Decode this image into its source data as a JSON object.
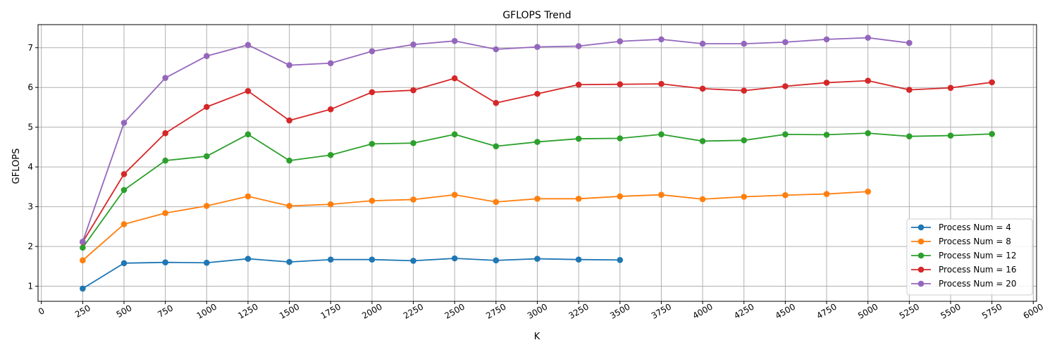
{
  "chart_data": {
    "type": "line",
    "title": "GFLOPS Trend",
    "xlabel": "K",
    "ylabel": "GFLOPS",
    "xlim": [
      -20,
      6020
    ],
    "ylim": [
      0.62,
      7.58
    ],
    "xticks": [
      0,
      250,
      500,
      750,
      1000,
      1250,
      1500,
      1750,
      2000,
      2250,
      2500,
      2750,
      3000,
      3250,
      3500,
      3750,
      4000,
      4250,
      4500,
      4750,
      5000,
      5250,
      5500,
      5750,
      6000
    ],
    "yticks": [
      1,
      2,
      3,
      4,
      5,
      6,
      7
    ],
    "grid": true,
    "legend_position": "lower-right",
    "series": [
      {
        "name": "Process Num = 4",
        "color": "#1f77b4",
        "x": [
          250,
          500,
          750,
          1000,
          1250,
          1500,
          1750,
          2000,
          2250,
          2500,
          2750,
          3000,
          3250,
          3500
        ],
        "y": [
          0.94,
          1.58,
          1.6,
          1.59,
          1.69,
          1.61,
          1.67,
          1.67,
          1.64,
          1.7,
          1.65,
          1.69,
          1.67,
          1.66
        ]
      },
      {
        "name": "Process Num = 8",
        "color": "#ff7f0e",
        "x": [
          250,
          500,
          750,
          1000,
          1250,
          1500,
          1750,
          2000,
          2250,
          2500,
          2750,
          3000,
          3250,
          3500,
          3750,
          4000,
          4250,
          4500,
          4750,
          5000
        ],
        "y": [
          1.65,
          2.56,
          2.84,
          3.02,
          3.26,
          3.02,
          3.06,
          3.15,
          3.18,
          3.3,
          3.12,
          3.2,
          3.2,
          3.26,
          3.3,
          3.19,
          3.25,
          3.29,
          3.32,
          3.38
        ]
      },
      {
        "name": "Process Num = 12",
        "color": "#2ca02c",
        "x": [
          250,
          500,
          750,
          1000,
          1250,
          1500,
          1750,
          2000,
          2250,
          2500,
          2750,
          3000,
          3250,
          3500,
          3750,
          4000,
          4250,
          4500,
          4750,
          5000,
          5250,
          5500,
          5750
        ],
        "y": [
          1.97,
          3.42,
          4.16,
          4.27,
          4.82,
          4.16,
          4.3,
          4.58,
          4.6,
          4.82,
          4.52,
          4.63,
          4.71,
          4.72,
          4.82,
          4.65,
          4.67,
          4.82,
          4.81,
          4.85,
          4.77,
          4.79,
          4.83
        ]
      },
      {
        "name": "Process Num = 16",
        "color": "#d62728",
        "x": [
          250,
          500,
          750,
          1000,
          1250,
          1500,
          1750,
          2000,
          2250,
          2500,
          2750,
          3000,
          3250,
          3500,
          3750,
          4000,
          4250,
          4500,
          4750,
          5000,
          5250,
          5500,
          5750
        ],
        "y": [
          2.11,
          3.82,
          4.85,
          5.51,
          5.91,
          5.17,
          5.45,
          5.88,
          5.93,
          6.23,
          5.61,
          5.84,
          6.07,
          6.08,
          6.09,
          5.97,
          5.92,
          6.03,
          6.12,
          6.17,
          5.94,
          5.99,
          6.13
        ]
      },
      {
        "name": "Process Num = 20",
        "color": "#9467bd",
        "x": [
          250,
          500,
          750,
          1000,
          1250,
          1500,
          1750,
          2000,
          2250,
          2500,
          2750,
          3000,
          3250,
          3500,
          3750,
          4000,
          4250,
          4500,
          4750,
          5000,
          5250
        ],
        "y": [
          2.12,
          5.11,
          6.24,
          6.79,
          7.07,
          6.56,
          6.61,
          6.91,
          7.08,
          7.17,
          6.96,
          7.02,
          7.04,
          7.16,
          7.21,
          7.1,
          7.1,
          7.14,
          7.21,
          7.25,
          7.12
        ]
      }
    ]
  }
}
